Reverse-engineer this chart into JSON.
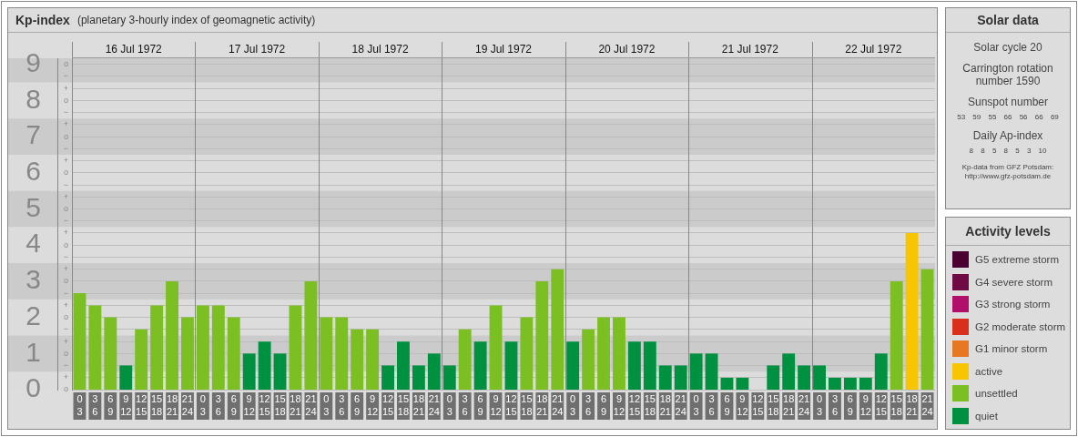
{
  "chart_data": [
    {
      "type": "bar",
      "title": "Kp-index",
      "subtitle": "(planetary 3-hourly index of geomagnetic activity)",
      "stacked": true,
      "legend": "right",
      "legend_title": "Activity levels",
      "grid": "y",
      "categories": [
        "0\n3",
        "3\n6",
        "6\n9",
        "9\n12",
        "12\n15",
        "15\n18",
        "18\n21",
        "21\n24",
        "0\n3",
        "3\n6",
        "6\n9",
        "9\n12",
        "12\n15",
        "15\n18",
        "18\n21",
        "21\n24",
        "0\n3",
        "3\n6",
        "6\n9",
        "9\n12",
        "12\n15",
        "15\n18",
        "18\n21",
        "21\n24",
        "0\n3",
        "3\n6",
        "6\n9",
        "9\n12",
        "12\n15",
        "15\n18",
        "18\n21",
        "21\n24",
        "0\n3",
        "3\n6",
        "6\n9",
        "9\n12",
        "12\n15",
        "15\n18",
        "18\n21",
        "21\n24",
        "0\n3",
        "3\n6",
        "6\n9",
        "9\n12",
        "12\n15",
        "15\n18",
        "18\n21",
        "21\n24",
        "0\n3",
        "3\n6",
        "6\n9",
        "9\n12",
        "12\n15",
        "15\n18",
        "18\n21",
        "21\n24"
      ],
      "annotations": [
        "16 Jul 1972",
        "17 Jul 1972",
        "18 Jul 1972",
        "19 Jul 1972",
        "20 Jul 1972",
        "21 Jul 1972",
        "22 Jul 1972"
      ],
      "ylim": [
        0,
        9.17
      ],
      "yticks": [
        0,
        1,
        2,
        3,
        4,
        5,
        6,
        7,
        8,
        9
      ],
      "y2_categories": [
        "o",
        "−",
        "+",
        "o",
        "−",
        "+",
        "o",
        "−",
        "+",
        "o",
        "−",
        "+",
        "o",
        "−",
        "+",
        "o",
        "−",
        "+",
        "o",
        "−",
        "+",
        "o",
        "−",
        "+",
        "o",
        "−",
        "+",
        "o"
      ],
      "bands": [
        {
          "axis": "y",
          "from": 0.5,
          "to": 1.5,
          "color": "#cbcbcb"
        },
        {
          "axis": "y",
          "from": 2.5,
          "to": 3.5,
          "color": "#cbcbcb"
        },
        {
          "axis": "y",
          "from": 4.5,
          "to": 5.5,
          "color": "#cbcbcb"
        },
        {
          "axis": "y",
          "from": 6.5,
          "to": 7.5,
          "color": "#cbcbcb"
        },
        {
          "axis": "y",
          "from": 8.5,
          "to": 9.17,
          "color": "#cbcbcb"
        }
      ],
      "series": [
        {
          "name": "G5 extreme storm",
          "color": "#4a0030",
          "values": [
            null,
            null,
            null,
            null,
            null,
            null,
            null,
            null,
            null,
            null,
            null,
            null,
            null,
            null,
            null,
            null,
            null,
            null,
            null,
            null,
            null,
            null,
            null,
            null,
            null,
            null,
            null,
            null,
            null,
            null,
            null,
            null,
            null,
            null,
            null,
            null,
            null,
            null,
            null,
            null,
            null,
            null,
            null,
            null,
            null,
            null,
            null,
            null,
            null,
            null,
            null,
            null,
            null,
            null,
            null,
            null
          ]
        },
        {
          "name": "G4 severe storm",
          "color": "#700a45",
          "values": [
            null,
            null,
            null,
            null,
            null,
            null,
            null,
            null,
            null,
            null,
            null,
            null,
            null,
            null,
            null,
            null,
            null,
            null,
            null,
            null,
            null,
            null,
            null,
            null,
            null,
            null,
            null,
            null,
            null,
            null,
            null,
            null,
            null,
            null,
            null,
            null,
            null,
            null,
            null,
            null,
            null,
            null,
            null,
            null,
            null,
            null,
            null,
            null,
            null,
            null,
            null,
            null,
            null,
            null,
            null,
            null
          ]
        },
        {
          "name": "G3 strong storm",
          "color": "#b0106a",
          "values": [
            null,
            null,
            null,
            null,
            null,
            null,
            null,
            null,
            null,
            null,
            null,
            null,
            null,
            null,
            null,
            null,
            null,
            null,
            null,
            null,
            null,
            null,
            null,
            null,
            null,
            null,
            null,
            null,
            null,
            null,
            null,
            null,
            null,
            null,
            null,
            null,
            null,
            null,
            null,
            null,
            null,
            null,
            null,
            null,
            null,
            null,
            null,
            null,
            null,
            null,
            null,
            null,
            null,
            null,
            null,
            null
          ]
        },
        {
          "name": "G2 moderate storm",
          "color": "#d8301c",
          "values": [
            null,
            null,
            null,
            null,
            null,
            null,
            null,
            null,
            null,
            null,
            null,
            null,
            null,
            null,
            null,
            null,
            null,
            null,
            null,
            null,
            null,
            null,
            null,
            null,
            null,
            null,
            null,
            null,
            null,
            null,
            null,
            null,
            null,
            null,
            null,
            null,
            null,
            null,
            null,
            null,
            null,
            null,
            null,
            null,
            null,
            null,
            null,
            null,
            null,
            null,
            null,
            null,
            null,
            null,
            null,
            null
          ]
        },
        {
          "name": "G1 minor storm",
          "color": "#e87722",
          "values": [
            null,
            null,
            null,
            null,
            null,
            null,
            null,
            null,
            null,
            null,
            null,
            null,
            null,
            null,
            null,
            null,
            null,
            null,
            null,
            null,
            null,
            null,
            null,
            null,
            null,
            null,
            null,
            null,
            null,
            null,
            null,
            null,
            null,
            null,
            null,
            null,
            null,
            null,
            null,
            null,
            null,
            null,
            null,
            null,
            null,
            null,
            null,
            null,
            null,
            null,
            null,
            null,
            null,
            null,
            null,
            null
          ]
        },
        {
          "name": "active",
          "color": "#f8c600",
          "values": [
            null,
            null,
            null,
            null,
            null,
            null,
            null,
            null,
            null,
            null,
            null,
            null,
            null,
            null,
            null,
            null,
            null,
            null,
            null,
            null,
            null,
            null,
            null,
            null,
            null,
            null,
            null,
            null,
            null,
            null,
            null,
            null,
            null,
            null,
            null,
            null,
            null,
            null,
            null,
            null,
            null,
            null,
            null,
            null,
            null,
            null,
            null,
            null,
            null,
            null,
            null,
            null,
            null,
            null,
            4.33,
            null
          ]
        },
        {
          "name": "unsettled",
          "color": "#7bbf22",
          "values": [
            2.67,
            2.33,
            2,
            null,
            1.67,
            2.33,
            3,
            2,
            2.33,
            2.33,
            2,
            null,
            null,
            null,
            2.33,
            3,
            2,
            2,
            1.67,
            1.67,
            null,
            null,
            null,
            null,
            null,
            1.67,
            null,
            2.33,
            null,
            2,
            3,
            3.33,
            null,
            1.67,
            2,
            2,
            null,
            null,
            null,
            null,
            null,
            null,
            null,
            null,
            null,
            null,
            null,
            null,
            null,
            null,
            null,
            null,
            null,
            3,
            null,
            3.33
          ]
        },
        {
          "name": "quiet",
          "color": "#009140",
          "values": [
            null,
            null,
            null,
            0.67,
            null,
            null,
            null,
            null,
            null,
            null,
            null,
            1,
            1.33,
            1,
            null,
            null,
            null,
            null,
            null,
            null,
            0.67,
            1.33,
            0.67,
            1,
            0.67,
            null,
            1.33,
            null,
            1.33,
            null,
            null,
            null,
            1.33,
            null,
            null,
            null,
            1.33,
            1.33,
            0.67,
            0.67,
            1,
            1,
            0.33,
            0.33,
            0,
            0.67,
            1,
            0.67,
            0.67,
            0.33,
            0.33,
            0.33,
            1,
            null,
            null,
            null
          ]
        }
      ]
    },
    {
      "type": "other",
      "title": "Solar data",
      "annotations": [
        "Solar cycle 20",
        "Carrington rotation number 1590",
        "Sunspot number",
        "53 59 55 66 56 66 69",
        "Daily Ap-index",
        "8 8 5 8 5 3 10",
        "Kp-data from GFZ Potsdam:",
        "http://www.gfz-potsdam.de"
      ]
    }
  ]
}
